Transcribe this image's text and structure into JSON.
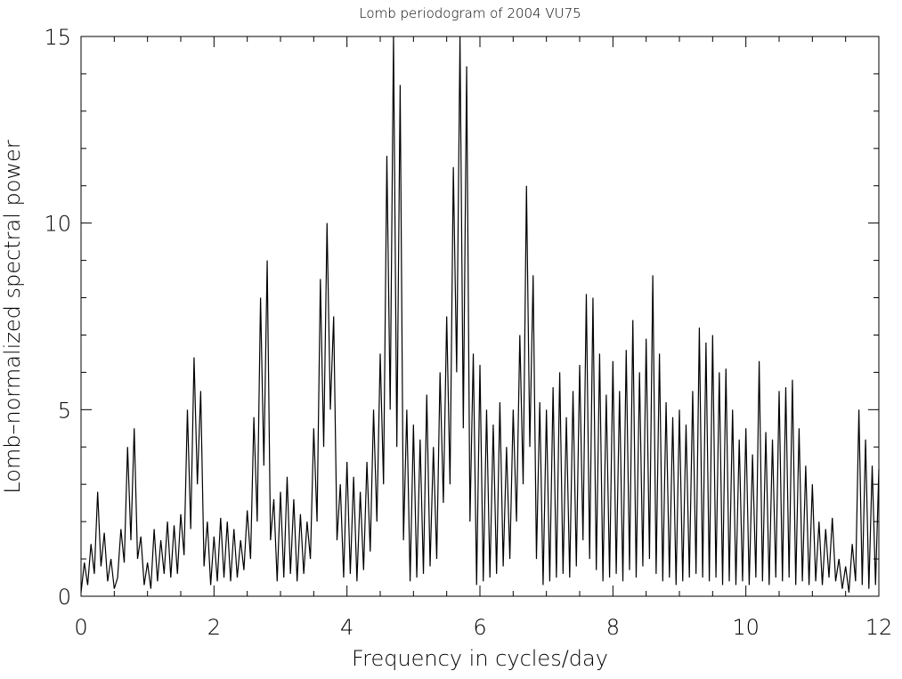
{
  "chart_data": {
    "type": "line",
    "title": "Lomb periodogram of 2004 VU75",
    "x_label": "Frequency in cycles/day",
    "y_label": "Lomb–normalized spectral power",
    "xlim": [
      0,
      12
    ],
    "ylim": [
      0,
      15
    ],
    "xticks": [
      0,
      2,
      4,
      6,
      8,
      10,
      12
    ],
    "yticks": [
      0,
      5,
      10,
      15
    ],
    "xminorticks": [
      0.5,
      1,
      1.5,
      2.5,
      3,
      3.5,
      4.5,
      5,
      5.5,
      6.5,
      7,
      7.5,
      8.5,
      9,
      9.5,
      10.5,
      11,
      11.5
    ],
    "yminorticks": [
      1,
      2,
      3,
      4,
      6,
      7,
      8,
      9,
      11,
      12,
      13,
      14
    ],
    "color": "#000000",
    "x": [
      0,
      0.05,
      0.1,
      0.15,
      0.2,
      0.25,
      0.3,
      0.35,
      0.4,
      0.45,
      0.5,
      0.55,
      0.6,
      0.65,
      0.7,
      0.75,
      0.8,
      0.85,
      0.9,
      0.95,
      1,
      1.05,
      1.1,
      1.15,
      1.2,
      1.25,
      1.3,
      1.35,
      1.4,
      1.45,
      1.5,
      1.55,
      1.6,
      1.65,
      1.7,
      1.75,
      1.8,
      1.85,
      1.9,
      1.95,
      2,
      2.05,
      2.1,
      2.15,
      2.2,
      2.25,
      2.3,
      2.35,
      2.4,
      2.45,
      2.5,
      2.55,
      2.6,
      2.65,
      2.7,
      2.75,
      2.8,
      2.85,
      2.9,
      2.95,
      3,
      3.05,
      3.1,
      3.15,
      3.2,
      3.25,
      3.3,
      3.35,
      3.4,
      3.45,
      3.5,
      3.55,
      3.6,
      3.65,
      3.7,
      3.75,
      3.8,
      3.85,
      3.9,
      3.95,
      4,
      4.05,
      4.1,
      4.15,
      4.2,
      4.25,
      4.3,
      4.35,
      4.4,
      4.45,
      4.5,
      4.55,
      4.6,
      4.65,
      4.7,
      4.75,
      4.8,
      4.85,
      4.9,
      4.95,
      5,
      5.05,
      5.1,
      5.15,
      5.2,
      5.25,
      5.3,
      5.35,
      5.4,
      5.45,
      5.5,
      5.55,
      5.6,
      5.65,
      5.7,
      5.75,
      5.8,
      5.85,
      5.9,
      5.95,
      6,
      6.05,
      6.1,
      6.15,
      6.2,
      6.25,
      6.3,
      6.35,
      6.4,
      6.45,
      6.5,
      6.55,
      6.6,
      6.65,
      6.7,
      6.75,
      6.8,
      6.85,
      6.9,
      6.95,
      7,
      7.05,
      7.1,
      7.15,
      7.2,
      7.25,
      7.3,
      7.35,
      7.4,
      7.45,
      7.5,
      7.55,
      7.6,
      7.65,
      7.7,
      7.75,
      7.8,
      7.85,
      7.9,
      7.95,
      8,
      8.05,
      8.1,
      8.15,
      8.2,
      8.25,
      8.3,
      8.35,
      8.4,
      8.45,
      8.5,
      8.55,
      8.6,
      8.65,
      8.7,
      8.75,
      8.8,
      8.85,
      8.9,
      8.95,
      9,
      9.05,
      9.1,
      9.15,
      9.2,
      9.25,
      9.3,
      9.35,
      9.4,
      9.45,
      9.5,
      9.55,
      9.6,
      9.65,
      9.7,
      9.75,
      9.8,
      9.85,
      9.9,
      9.95,
      10,
      10.05,
      10.1,
      10.15,
      10.2,
      10.25,
      10.3,
      10.35,
      10.4,
      10.45,
      10.5,
      10.55,
      10.6,
      10.65,
      10.7,
      10.75,
      10.8,
      10.85,
      10.9,
      10.95,
      11,
      11.05,
      11.1,
      11.15,
      11.2,
      11.25,
      11.3,
      11.35,
      11.4,
      11.45,
      11.5,
      11.55,
      11.6,
      11.65,
      11.7,
      11.75,
      11.8,
      11.85,
      11.9,
      11.95,
      12
    ],
    "values": [
      0.1,
      0.9,
      0.3,
      1.4,
      0.6,
      2.8,
      0.8,
      1.7,
      0.4,
      1.0,
      0.2,
      0.5,
      1.8,
      0.9,
      4.0,
      1.5,
      4.5,
      1.0,
      1.6,
      0.3,
      0.9,
      0.2,
      1.8,
      0.4,
      1.5,
      0.6,
      2.0,
      0.5,
      1.9,
      0.6,
      2.2,
      1.1,
      5.0,
      1.8,
      6.4,
      3.0,
      5.5,
      0.8,
      2.0,
      0.3,
      1.6,
      0.4,
      2.1,
      0.5,
      2.0,
      0.4,
      1.8,
      0.5,
      1.5,
      0.7,
      2.3,
      1.0,
      4.8,
      2.0,
      8.0,
      3.5,
      9.0,
      1.5,
      2.6,
      0.4,
      2.8,
      0.5,
      3.2,
      0.6,
      2.6,
      0.4,
      2.2,
      0.6,
      2.0,
      1.0,
      4.5,
      2.0,
      8.5,
      4.0,
      10.0,
      5.0,
      7.5,
      1.5,
      3.0,
      0.5,
      3.6,
      0.6,
      3.2,
      0.4,
      2.8,
      0.7,
      3.6,
      1.2,
      5.0,
      2.0,
      6.5,
      3.0,
      11.8,
      5.0,
      15.0,
      4.0,
      13.7,
      1.5,
      5.0,
      0.4,
      4.6,
      0.5,
      4.2,
      0.6,
      5.4,
      0.8,
      4.0,
      1.0,
      6.0,
      2.5,
      7.5,
      3.0,
      11.5,
      6.0,
      15.0,
      4.5,
      14.2,
      2.0,
      6.5,
      0.3,
      6.2,
      0.4,
      5.0,
      0.5,
      4.6,
      0.6,
      5.2,
      0.8,
      4.0,
      1.0,
      5.0,
      2.0,
      7.0,
      3.0,
      11.0,
      4.0,
      8.6,
      1.0,
      5.2,
      0.3,
      5.0,
      0.4,
      5.6,
      0.5,
      6.0,
      0.6,
      4.8,
      0.5,
      5.5,
      0.8,
      6.2,
      1.5,
      8.1,
      1.0,
      8.0,
      0.7,
      6.5,
      0.4,
      5.4,
      0.5,
      6.3,
      0.6,
      5.5,
      0.4,
      6.6,
      0.7,
      7.4,
      0.5,
      6.0,
      0.8,
      6.9,
      1.0,
      8.6,
      0.6,
      6.5,
      0.4,
      5.2,
      0.5,
      4.8,
      0.3,
      5.0,
      0.4,
      4.6,
      0.5,
      5.5,
      0.6,
      7.2,
      0.5,
      6.8,
      0.4,
      7.0,
      0.5,
      6.0,
      0.3,
      6.1,
      0.4,
      5.0,
      0.3,
      4.2,
      0.4,
      4.5,
      0.3,
      3.8,
      0.5,
      6.3,
      0.4,
      4.4,
      0.3,
      4.2,
      0.5,
      5.5,
      0.4,
      5.6,
      0.5,
      5.8,
      0.3,
      4.5,
      0.4,
      3.5,
      0.3,
      3.0,
      0.4,
      2.0,
      0.3,
      1.8,
      0.5,
      2.1,
      0.4,
      1.0,
      0.2,
      0.8,
      0.1,
      1.4,
      0.4,
      5.0,
      0.3,
      4.2,
      0.2,
      3.5,
      0.3,
      3.4
    ]
  }
}
